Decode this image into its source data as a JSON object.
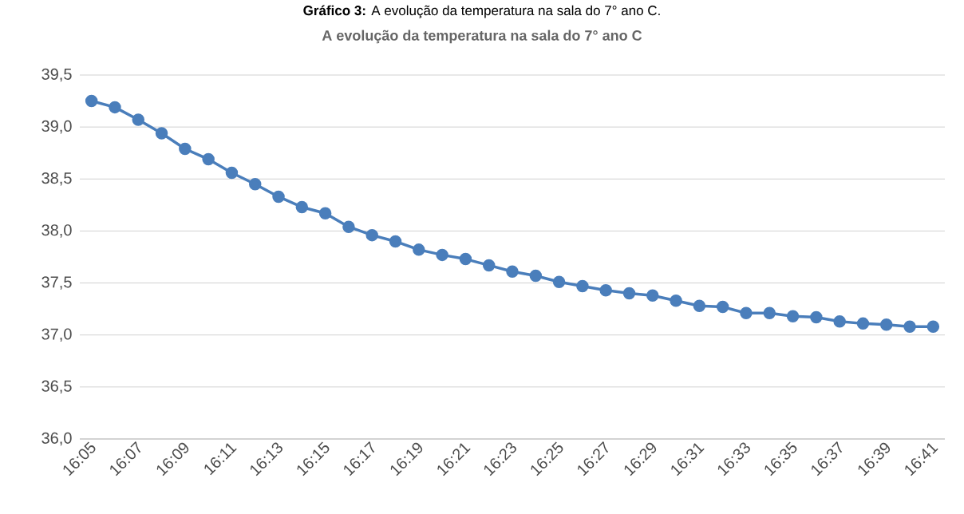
{
  "chart_data": {
    "type": "line",
    "title": "A evolução da temperatura na sala do 7° ano C",
    "annotations": [
      "**Gráfico 3:** A evolução da temperatura na sala do 7° ano C."
    ],
    "categories": [
      "16:05",
      null,
      "16:07",
      null,
      "16:09",
      null,
      "16:11",
      null,
      "16:13",
      null,
      "16:15",
      null,
      "16:17",
      null,
      "16:19",
      null,
      "16:21",
      null,
      "16:23",
      null,
      "16:25",
      null,
      "16:27",
      null,
      "16:29",
      null,
      "16:31",
      null,
      "16:33",
      null,
      "16:35",
      null,
      "16:37",
      null,
      "16:39",
      null,
      "16:41"
    ],
    "series": [
      {
        "color": "#4a7ebb",
        "values": [
          39.25,
          39.19,
          39.07,
          38.94,
          38.79,
          38.69,
          38.56,
          38.45,
          38.33,
          38.23,
          38.17,
          38.04,
          37.96,
          37.9,
          37.82,
          37.77,
          37.73,
          37.67,
          37.61,
          37.57,
          37.51,
          37.47,
          37.43,
          37.4,
          37.38,
          37.33,
          37.28,
          37.27,
          37.21,
          37.21,
          37.18,
          37.17,
          37.13,
          37.11,
          37.1,
          37.08,
          37.08
        ]
      }
    ],
    "ylim": [
      36.0,
      39.5
    ],
    "yticks": [
      {
        "value": 36.0,
        "label": "36,0"
      },
      {
        "value": 36.5,
        "label": "36,5"
      },
      {
        "value": 37.0,
        "label": "37,0"
      },
      {
        "value": 37.5,
        "label": "37,5"
      },
      {
        "value": 38.0,
        "label": "38,0"
      },
      {
        "value": 38.5,
        "label": "38,5"
      },
      {
        "value": 39.0,
        "label": "39,0"
      },
      {
        "value": 39.5,
        "label": "39,5"
      }
    ],
    "grid": "y",
    "marker": "circle",
    "line_style": "solid"
  }
}
